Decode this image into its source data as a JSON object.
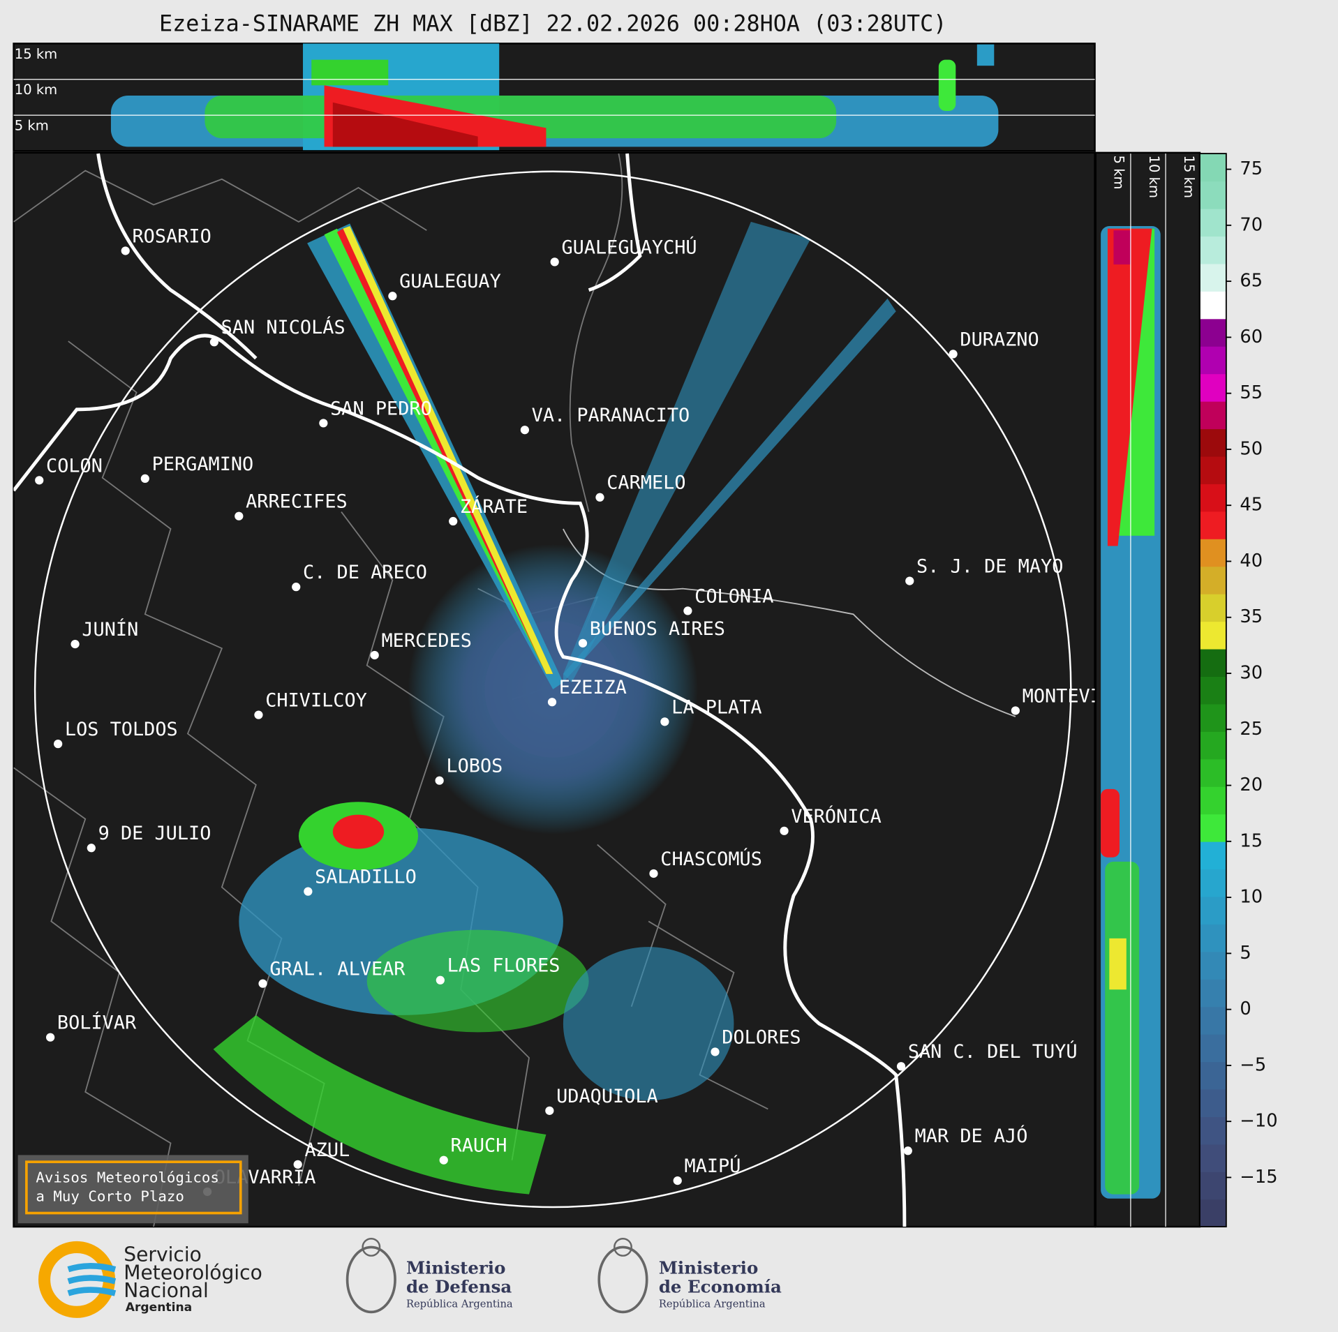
{
  "title": "Ezeiza-SINARAME ZH MAX [dBZ] 22.02.2026 00:28HOA (03:28UTC)",
  "cross_section": {
    "top_labels": [
      "15 km",
      "10 km",
      "5 km"
    ],
    "side_labels": [
      "5 km",
      "10 km",
      "15 km"
    ]
  },
  "cities": [
    "ROSARIO",
    "GUALEGUAYCHÚ",
    "GUALEGUAY",
    "SAN NICOLÁS",
    "DURAZNO",
    "SAN PEDRO",
    "VA. PARANACITO",
    "COLON",
    "PERGAMINO",
    "CARMELO",
    "ARRECIFES",
    "ZÁRATE",
    "S. J. DE MAYO",
    "C. DE ARECO",
    "COLONIA",
    "JUNÍN",
    "BUENOS AIRES",
    "MERCEDES",
    "EZEIZA",
    "MONTEVIDEO",
    "LA PLATA",
    "CHIVILCOY",
    "LOS TOLDOS",
    "LOBOS",
    "VERÓNICA",
    "9 DE JULIO",
    "CHASCOMÚS",
    "SALADILLO",
    "GRAL. ALVEAR",
    "LAS FLORES",
    "BOLÍVAR",
    "DOLORES",
    "SAN C. DEL TUYÚ",
    "UDAQUIOLA",
    "MAR DE AJÓ",
    "RAUCH",
    "AZUL",
    "MAIPÚ",
    "OLAVARRÍA"
  ],
  "notice": [
    "Avisos Meteorológicos",
    "a Muy Corto Plazo"
  ],
  "logos": {
    "smn": [
      "Servicio",
      "Meteorológico",
      "Nacional",
      "Argentina"
    ],
    "defensa": [
      "Ministerio",
      "de Defensa",
      "República Argentina"
    ],
    "economia": [
      "Ministerio",
      "de Economía",
      "República Argentina"
    ]
  },
  "colorbar": {
    "lim": [
      -19.4,
      76.4
    ],
    "ticks": [
      75,
      70,
      65,
      60,
      55,
      50,
      45,
      40,
      35,
      30,
      25,
      20,
      15,
      10,
      5,
      0,
      {
        "value": -5,
        "label": "−5"
      },
      {
        "value": -10,
        "label": "−10"
      },
      {
        "value": -15,
        "label": "−15"
      }
    ],
    "colors": [
      "#3a3f66",
      "#3d4670",
      "#404d7a",
      "#3f5483",
      "#3d5c8c",
      "#3b6595",
      "#3a6e9e",
      "#3877a6",
      "#3680ae",
      "#3389b6",
      "#2f92be",
      "#2b9cc6",
      "#27a6ce",
      "#22b0d6",
      "#3ee83a",
      "#34d22e",
      "#2cbd27",
      "#25a820",
      "#1f941a",
      "#1a8015",
      "#156d11",
      "#ede830",
      "#d8cf2c",
      "#d4ae28",
      "#e09020",
      "#ee1c22",
      "#d80f18",
      "#b50c10",
      "#9c0a0c",
      "#c0005a",
      "#e000c0",
      "#b000b0",
      "#8c0090",
      "#ffffff",
      "#d8f4ec",
      "#b8ecdc",
      "#a0e4cc",
      "#8cdcbc",
      "#84d8b4"
    ]
  }
}
